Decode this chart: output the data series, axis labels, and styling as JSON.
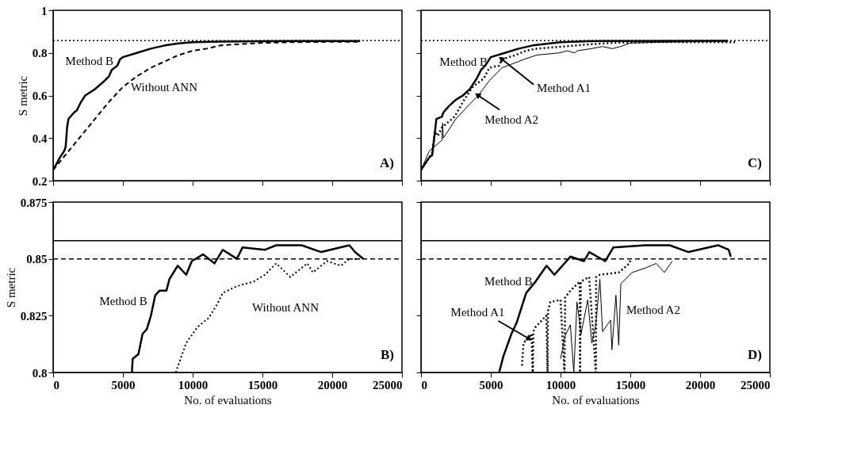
{
  "chart_data": [
    {
      "type": "line",
      "ylabel": "S metric",
      "xlim": [
        0,
        25000
      ],
      "ylim": [
        0.2,
        1
      ],
      "xticks": [
        0,
        5000,
        10000,
        15000,
        20000,
        25000
      ],
      "yticks": [
        0.2,
        0.4,
        0.6,
        0.8,
        1
      ],
      "tick_labels": "y",
      "annotations": [
        "A)"
      ],
      "ref_lines": [
        {
          "axis": "y",
          "value": 0.858,
          "line_style": "dotted",
          "color": "#000000"
        }
      ],
      "series": [
        {
          "name": "Method B",
          "color": "#000000",
          "line_style": "solid",
          "x": [
            0,
            500,
            800,
            900,
            1000,
            1100,
            1500,
            1700,
            2000,
            2300,
            3000,
            3700,
            4000,
            4200,
            4600,
            4800,
            5000,
            6000,
            7000,
            8000,
            9000,
            10000,
            12000,
            15000,
            18000,
            22000
          ],
          "values": [
            0.25,
            0.31,
            0.34,
            0.36,
            0.45,
            0.49,
            0.52,
            0.53,
            0.57,
            0.6,
            0.63,
            0.67,
            0.69,
            0.72,
            0.74,
            0.77,
            0.78,
            0.8,
            0.82,
            0.835,
            0.845,
            0.85,
            0.853,
            0.855,
            0.856,
            0.856
          ]
        },
        {
          "name": "Without ANN",
          "color": "#000000",
          "line_style": "dashed",
          "x": [
            0,
            1000,
            2000,
            3000,
            4000,
            5000,
            6000,
            7000,
            8000,
            9000,
            10000,
            11000,
            12000,
            13000,
            15000,
            17000,
            20000,
            22000
          ],
          "values": [
            0.25,
            0.33,
            0.41,
            0.49,
            0.57,
            0.64,
            0.69,
            0.73,
            0.76,
            0.79,
            0.81,
            0.82,
            0.835,
            0.84,
            0.847,
            0.85,
            0.852,
            0.852
          ]
        }
      ]
    },
    {
      "type": "line",
      "xlim": [
        0,
        25000
      ],
      "ylim": [
        0.2,
        1
      ],
      "xticks": [
        0,
        5000,
        10000,
        15000,
        20000,
        25000
      ],
      "yticks": [
        0.2,
        0.4,
        0.6,
        0.8,
        1
      ],
      "tick_labels": false,
      "annotations": [
        "C)"
      ],
      "ref_lines": [
        {
          "axis": "y",
          "value": 0.858,
          "line_style": "dotted",
          "color": "#000000"
        }
      ],
      "series": [
        {
          "name": "Method B",
          "color": "#000000",
          "line_style": "solid",
          "x": [
            0,
            600,
            800,
            1000,
            1100,
            1500,
            1600,
            2000,
            2500,
            3000,
            3500,
            4000,
            4300,
            4600,
            5000,
            6000,
            7000,
            8000,
            10000,
            12000,
            15000,
            22000
          ],
          "values": [
            0.25,
            0.31,
            0.32,
            0.43,
            0.49,
            0.5,
            0.52,
            0.55,
            0.58,
            0.6,
            0.63,
            0.68,
            0.72,
            0.74,
            0.78,
            0.8,
            0.82,
            0.835,
            0.85,
            0.855,
            0.856,
            0.857
          ]
        },
        {
          "name": "Method A1",
          "color": "#000000",
          "line_style": "dotted",
          "x": [
            0,
            800,
            1000,
            1200,
            1500,
            2400,
            3100,
            3700,
            4500,
            4900,
            5600,
            5800,
            6800,
            7500,
            8300,
            10200,
            12000,
            14000,
            17000,
            22500
          ],
          "values": [
            0.25,
            0.33,
            0.43,
            0.41,
            0.45,
            0.5,
            0.58,
            0.64,
            0.68,
            0.73,
            0.74,
            0.77,
            0.79,
            0.81,
            0.82,
            0.83,
            0.84,
            0.848,
            0.851,
            0.85
          ]
        },
        {
          "name": "Method A2",
          "color": "#000000",
          "line_style": "solid",
          "x": [
            0,
            600,
            1500,
            1550,
            1600,
            2500,
            3500,
            4100,
            4900,
            5800,
            7400,
            8300,
            9900,
            10500,
            11000,
            11200,
            12200,
            13000,
            13700,
            14300,
            15000,
            17000,
            20000,
            22000
          ],
          "values": [
            0.25,
            0.34,
            0.39,
            0.47,
            0.4,
            0.49,
            0.56,
            0.6,
            0.67,
            0.73,
            0.77,
            0.79,
            0.8,
            0.81,
            0.8,
            0.81,
            0.82,
            0.83,
            0.82,
            0.83,
            0.846,
            0.85,
            0.853,
            0.855
          ]
        }
      ]
    },
    {
      "type": "line",
      "xlabel": "No. of evaluations",
      "ylabel": "S metric",
      "xlim": [
        0,
        25000
      ],
      "ylim": [
        0.8,
        0.875
      ],
      "xticks": [
        0,
        5000,
        10000,
        15000,
        20000,
        25000
      ],
      "yticks": [
        0.8,
        0.825,
        0.85,
        0.875
      ],
      "annotations": [
        "B)"
      ],
      "ref_lines": [
        {
          "axis": "y",
          "value": 0.858,
          "line_style": "solid",
          "color": "#000000"
        },
        {
          "axis": "y",
          "value": 0.85,
          "line_style": "dashed",
          "color": "#000000"
        }
      ],
      "series": [
        {
          "name": "Method B",
          "color": "#000000",
          "line_style": "solid",
          "x": [
            5650,
            5700,
            6110,
            6410,
            6710,
            7010,
            7320,
            7620,
            8120,
            8330,
            8930,
            9540,
            9940,
            10750,
            11560,
            12160,
            13170,
            13570,
            15180,
            15990,
            17810,
            19210,
            21230,
            21630,
            22240
          ],
          "values": [
            0.8,
            0.806,
            0.808,
            0.817,
            0.819,
            0.825,
            0.834,
            0.836,
            0.836,
            0.841,
            0.847,
            0.843,
            0.849,
            0.852,
            0.848,
            0.854,
            0.85,
            0.855,
            0.854,
            0.856,
            0.856,
            0.853,
            0.856,
            0.853,
            0.85
          ]
        },
        {
          "name": "Without ANN",
          "color": "#000000",
          "line_style": "dotted",
          "x": [
            8790,
            9130,
            9540,
            10350,
            11150,
            11750,
            12160,
            13170,
            14380,
            15180,
            15990,
            17000,
            18210,
            18610,
            19620,
            20630,
            21230,
            22000
          ],
          "values": [
            0.8,
            0.806,
            0.813,
            0.82,
            0.824,
            0.83,
            0.835,
            0.838,
            0.84,
            0.843,
            0.848,
            0.842,
            0.848,
            0.844,
            0.849,
            0.847,
            0.85,
            0.85
          ]
        }
      ]
    },
    {
      "type": "line",
      "xlabel": "No. of evaluations",
      "xlim": [
        0,
        25000
      ],
      "ylim": [
        0.8,
        0.875
      ],
      "xticks": [
        0,
        5000,
        10000,
        15000,
        20000,
        25000
      ],
      "yticks": [
        0.8,
        0.825,
        0.85,
        0.875
      ],
      "tick_labels": "x",
      "annotations": [
        "D)"
      ],
      "ref_lines": [
        {
          "axis": "y",
          "value": 0.858,
          "line_style": "solid",
          "color": "#000000"
        },
        {
          "axis": "y",
          "value": 0.85,
          "line_style": "dashed",
          "color": "#000000"
        }
      ],
      "series": [
        {
          "name": "Method B",
          "color": "#000000",
          "line_style": "solid",
          "x": [
            5600,
            5900,
            6480,
            6860,
            7540,
            8210,
            9000,
            9560,
            10710,
            11670,
            12060,
            13200,
            13780,
            16090,
            17820,
            19170,
            21280,
            22050,
            22200
          ],
          "values": [
            0.8,
            0.807,
            0.817,
            0.822,
            0.835,
            0.84,
            0.847,
            0.843,
            0.851,
            0.849,
            0.853,
            0.849,
            0.855,
            0.856,
            0.856,
            0.853,
            0.856,
            0.854,
            0.851
          ]
        },
        {
          "name": "Method A1",
          "color": "#000000",
          "line_style": "dotted",
          "x": [
            7240,
            7340,
            7700,
            7920,
            8010,
            8050,
            8210,
            8980,
            9070,
            9100,
            9270,
            10000,
            10280,
            10330,
            10710,
            11380,
            11400,
            11450,
            12050,
            12530,
            12550,
            12820,
            14170,
            14940,
            15030
          ],
          "values": [
            0.803,
            0.813,
            0.815,
            0.817,
            0.8,
            0.818,
            0.82,
            0.825,
            0.8,
            0.827,
            0.831,
            0.832,
            0.8,
            0.833,
            0.836,
            0.84,
            0.8,
            0.84,
            0.842,
            0.8,
            0.842,
            0.843,
            0.844,
            0.848,
            0.85
          ]
        },
        {
          "name": "Method A2",
          "color": "#000000",
          "line_style": "solid",
          "x": [
            10000,
            10320,
            10700,
            10950,
            11180,
            11470,
            11950,
            12240,
            12530,
            12820,
            13010,
            13590,
            13680,
            13970,
            14170,
            14320,
            15130,
            16090,
            16860,
            17440,
            18010
          ],
          "values": [
            0.806,
            0.816,
            0.821,
            0.8,
            0.831,
            0.817,
            0.832,
            0.813,
            0.821,
            0.841,
            0.818,
            0.823,
            0.81,
            0.834,
            0.812,
            0.839,
            0.844,
            0.846,
            0.848,
            0.844,
            0.849
          ]
        }
      ]
    }
  ]
}
